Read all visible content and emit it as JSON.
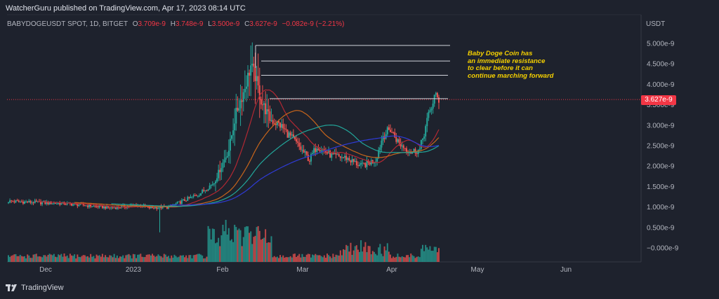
{
  "publisher": "WatcherGuru published on TradingView.com, Apr 17, 2023 08:14 UTC",
  "legend": {
    "symbol": "BABYDOGEUSDT SPOT, 1D, BITGET",
    "open": "3.709e-9",
    "high": "3.748e-9",
    "low": "3.500e-9",
    "close": "3.627e-9",
    "change": "−0.082e-9 (−2.21%)"
  },
  "currency": "USDT",
  "last_price": "3.627e-9",
  "annotation": [
    "Baby Doge Coin has",
    "an immediate resistance",
    "to clear before it can",
    "continue marching forward"
  ],
  "footer": "TradingView",
  "colors": {
    "background": "#1e222d",
    "up": "#26a69a",
    "down": "#ef5350",
    "annotation": "#f5d000",
    "last_price": "#f23645"
  },
  "chart_data": {
    "type": "candlestick",
    "y_ticks": [
      "5.000e-9",
      "4.500e-9",
      "4.000e-9",
      "3.500e-9",
      "3.000e-9",
      "2.500e-9",
      "2.000e-9",
      "1.500e-9",
      "1.000e-9",
      "0.500e-9",
      "−0.000e-9"
    ],
    "x_ticks": [
      "Dec",
      "2023",
      "Feb",
      "Mar",
      "Apr",
      "May",
      "Jun"
    ],
    "resistance_levels": [
      4.95,
      4.57,
      4.22,
      3.65
    ],
    "current_price": 3.627
  }
}
